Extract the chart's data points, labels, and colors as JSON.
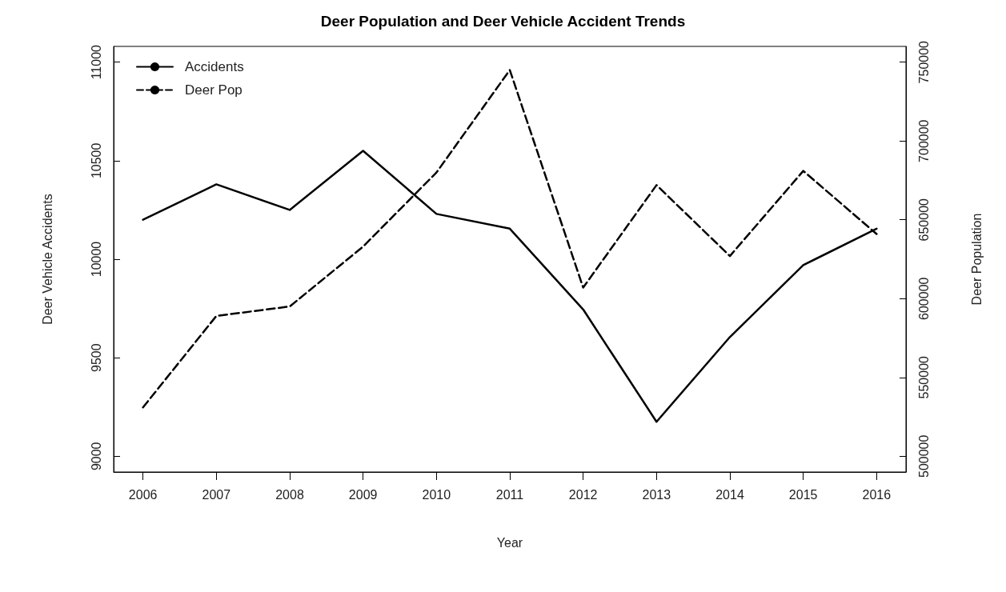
{
  "chart_data": {
    "type": "line",
    "title": "Deer Population and Deer Vehicle Accident Trends",
    "xlabel": "Year",
    "ylabel": "Deer Vehicle Accidents",
    "y2label": "Deer Population",
    "x": [
      2006,
      2007,
      2008,
      2009,
      2010,
      2011,
      2012,
      2013,
      2014,
      2015,
      2016
    ],
    "xlim": [
      2005.6,
      2016.4
    ],
    "xticks": [
      2006,
      2007,
      2008,
      2009,
      2010,
      2011,
      2012,
      2013,
      2014,
      2015,
      2016
    ],
    "ylim": [
      8920,
      11080
    ],
    "yticks": [
      9000,
      9500,
      10000,
      10500,
      11000
    ],
    "y2lim": [
      490000,
      760000
    ],
    "y2ticks": [
      500000,
      550000,
      600000,
      650000,
      700000,
      750000
    ],
    "series": [
      {
        "name": "Accidents",
        "color": "#000000",
        "line_style": "solid",
        "values": [
          10200,
          10380,
          10250,
          10550,
          10230,
          10155,
          9745,
          9175,
          9605,
          9970,
          10155
        ]
      },
      {
        "name": "Deer Pop",
        "color": "#000000",
        "line_style": "dashed",
        "axis": "y2",
        "values": [
          531000,
          589000,
          595000,
          633000,
          680000,
          745000,
          607000,
          672000,
          627000,
          681000,
          641000
        ]
      }
    ],
    "legend": "top left",
    "grid": false,
    "marker": "none"
  }
}
